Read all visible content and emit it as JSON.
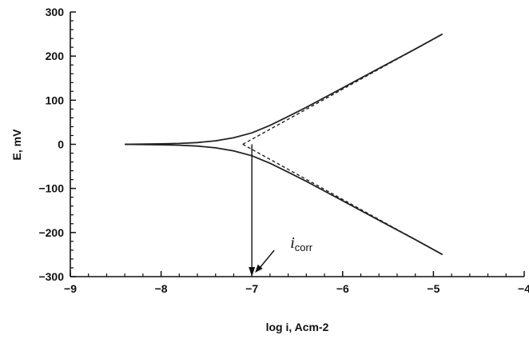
{
  "chart_data": {
    "type": "line",
    "title": "",
    "xlabel": "log i, Acm-2",
    "ylabel": "E, mV",
    "xlim": [
      -9,
      -4
    ],
    "ylim": [
      -300,
      300
    ],
    "x_ticks": [
      -9,
      -8,
      -7,
      -6,
      -5,
      -4
    ],
    "x_tick_labels": [
      "−9",
      "−8",
      "−7",
      "−6",
      "−5",
      "−4"
    ],
    "y_ticks": [
      -300,
      -200,
      -100,
      0,
      100,
      200,
      300
    ],
    "y_tick_labels": [
      "−300",
      "−200",
      "−100",
      "0",
      "100",
      "200",
      "300"
    ],
    "grid": false,
    "series": [
      {
        "style": "solid",
        "color": "#222222",
        "x": [
          -8.4,
          -8.0,
          -7.8,
          -7.6,
          -7.4,
          -7.2,
          -7.0,
          -6.8,
          -6.6,
          -6.4,
          -6.2,
          -6.0,
          -5.6,
          -5.2,
          -4.9
        ],
        "y": [
          0,
          1,
          2,
          4,
          8,
          15,
          26,
          43,
          63,
          84,
          106,
          128,
          172,
          216,
          250
        ]
      },
      {
        "style": "solid",
        "color": "#222222",
        "x": [
          -8.4,
          -8.0,
          -7.8,
          -7.6,
          -7.4,
          -7.2,
          -7.0,
          -6.8,
          -6.6,
          -6.4,
          -6.2,
          -6.0,
          -5.6,
          -5.2,
          -4.9
        ],
        "y": [
          0,
          -1,
          -2,
          -4,
          -8,
          -15,
          -26,
          -43,
          -63,
          -84,
          -106,
          -128,
          -172,
          -216,
          -250
        ]
      },
      {
        "style": "dashed",
        "color": "#222222",
        "x": [
          -7.1,
          -4.9
        ],
        "y": [
          0,
          250
        ]
      },
      {
        "style": "dashed",
        "color": "#222222",
        "x": [
          -7.1,
          -4.9
        ],
        "y": [
          0,
          -250
        ]
      }
    ],
    "icorr": {
      "label_main": "i",
      "label_sub": "corr",
      "x": -7.0,
      "y_top": 0,
      "y_bottom": -300
    }
  }
}
